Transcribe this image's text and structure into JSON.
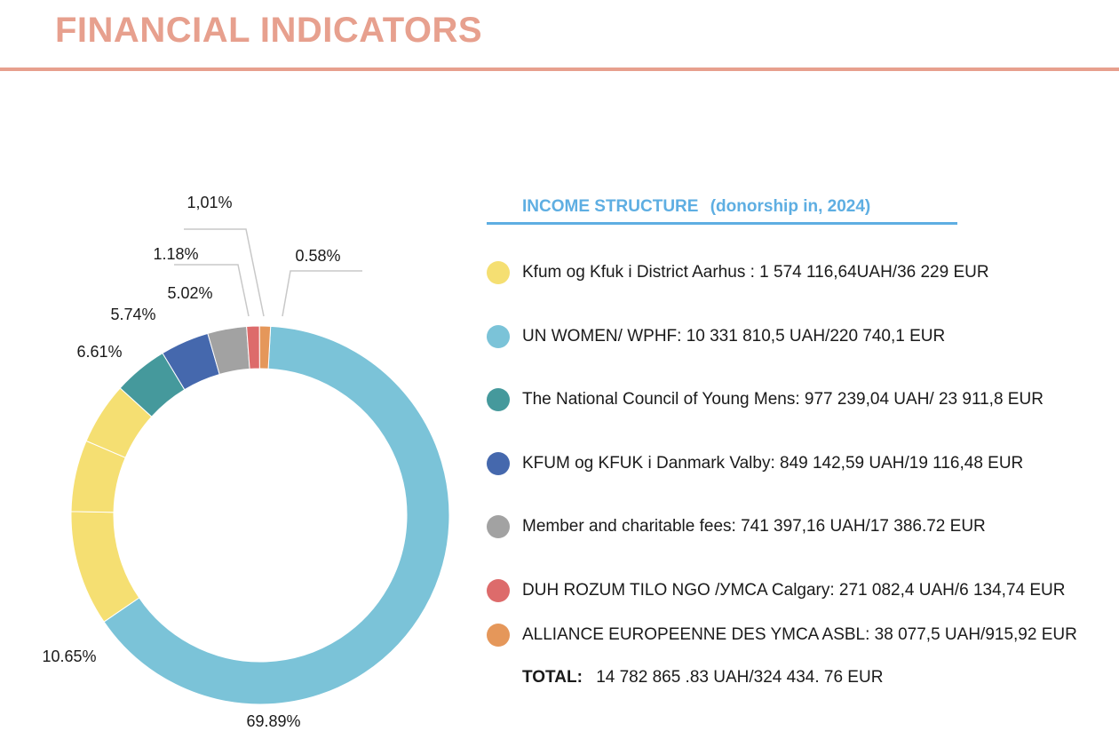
{
  "header": {
    "title": "FINANCIAL INDICATORS",
    "accent_color": "#e7a08e"
  },
  "legend": {
    "heading": "INCOME STRUCTURE",
    "subheading": "(donorship in, 2024)",
    "heading_color": "#5eaee2",
    "items": [
      {
        "label": "Kfum og Kfuk i District  Aarhus :  1 574 116,64UAH/36 229 EUR",
        "color": "#f5df72"
      },
      {
        "label": "UN WOMEN/ WPHF: 10 331 810,5 UAH/220 740,1 EUR",
        "color": "#7bc3d8"
      },
      {
        "label": "The National Council of Young Mens:  977 239,04 UAH/ 23 911,8 EUR",
        "color": "#45999c"
      },
      {
        "label": "KFUM og KFUK i Danmark Valby: 849 142,59 UAH/19 116,48 EUR",
        "color": "#4568ad"
      },
      {
        "label": "Member and charitable fees:  741 397,16 UAH/17 386.72 EUR",
        "color": "#a2a2a2"
      },
      {
        "label": "DUH  ROZUM TILO NGO /УMCA Calgary: 271 082,4 UAH/6 134,74 EUR",
        "color": "#dd6b6b"
      },
      {
        "label": "ALLIANCE EUROPEENNE DES YMCA ASBL: 38 077,5 UAH/915,92 EUR",
        "color": "#e5975a"
      }
    ],
    "total_label": "TOTAL:",
    "total_value": "14  782 865 .83 UAH/324 434. 76 EUR"
  },
  "chart_data": {
    "type": "pie",
    "variant": "donut",
    "title": "INCOME STRUCTURE (donorship in, 2024)",
    "slices": [
      {
        "name": "UN WOMEN/ WPHF",
        "value": 69.89,
        "label": "69.89%",
        "color": "#7bc3d8"
      },
      {
        "name": "Kfum og Kfuk i District Aarhus (a)",
        "value": 10.65,
        "label": "10.65%",
        "color": "#f5df72"
      },
      {
        "name": "Kfum og Kfuk i District Aarhus (b)",
        "value": 6.61,
        "label": "6.61%",
        "color": "#f5df72"
      },
      {
        "name": "Kfum og Kfuk i District Aarhus (c)",
        "value": 5.74,
        "label": "5.74%",
        "color": "#f5df72"
      },
      {
        "name": "The National Council of Young Mens",
        "value": 5.02,
        "label": "5.02%",
        "color": "#45999c"
      },
      {
        "name": "KFUM og KFUK i Danmark Valby",
        "value": 4.5,
        "label": "",
        "color": "#4568ad"
      },
      {
        "name": "Member and charitable fees",
        "value": 3.6,
        "label": "",
        "color": "#a2a2a2"
      },
      {
        "name": "DUH ROZUM TILO NGO /УMCA Calgary",
        "value": 1.18,
        "label": "1.18%",
        "color": "#dd6b6b"
      },
      {
        "name": "ALLIANCE EUROPEENNE DES YMCA ASBL",
        "value": 1.01,
        "label": "1,01%",
        "color": "#e5975a"
      }
    ],
    "extra_labels": [
      "0.58%"
    ]
  }
}
